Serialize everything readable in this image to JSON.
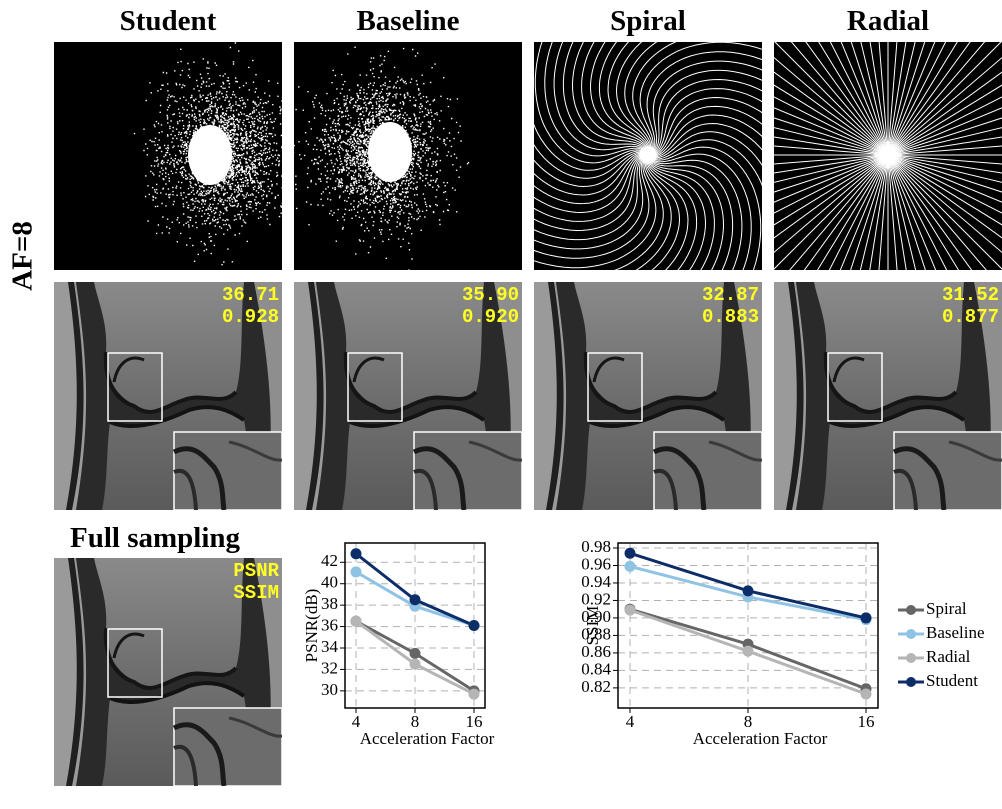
{
  "columns": [
    "Student",
    "Baseline",
    "Spiral",
    "Radial"
  ],
  "row_label": "AF=8",
  "reconstructions": [
    {
      "psnr": "36.71",
      "ssim": "0.928"
    },
    {
      "psnr": "35.90",
      "ssim": "0.920"
    },
    {
      "psnr": "32.87",
      "ssim": "0.883"
    },
    {
      "psnr": "31.52",
      "ssim": "0.877"
    }
  ],
  "full_sampling": {
    "title": "Full sampling",
    "psnr": "PSNR",
    "ssim": "SSIM"
  },
  "chart_data": [
    {
      "type": "line",
      "categories": [
        "4",
        "8",
        "16"
      ],
      "xlabel": "Acceleration Factor",
      "ylabel": "PSNR(dB)",
      "ylim": [
        28.4,
        43.8
      ],
      "yticks": [
        30,
        32,
        34,
        36,
        38,
        40,
        42
      ],
      "grid": true,
      "series": [
        {
          "name": "Spiral",
          "color": "#666666",
          "values": [
            36.5,
            33.5,
            30.0
          ]
        },
        {
          "name": "Baseline",
          "color": "#8ec3e3",
          "values": [
            41.1,
            37.9,
            36.1
          ]
        },
        {
          "name": "Radial",
          "color": "#b5b5b5",
          "values": [
            36.5,
            32.5,
            29.7
          ]
        },
        {
          "name": "Student",
          "color": "#0d2d68",
          "values": [
            42.8,
            38.5,
            36.1
          ]
        }
      ]
    },
    {
      "type": "line",
      "categories": [
        "4",
        "8",
        "16"
      ],
      "xlabel": "Acceleration Factor",
      "ylabel": "SSIM",
      "ylim": [
        0.797,
        0.9857
      ],
      "yticks": [
        0.82,
        0.84,
        0.86,
        0.88,
        {
          "value": 0.9,
          "label": "0.90"
        },
        0.92,
        0.94,
        0.96,
        0.98
      ],
      "grid": true,
      "legend": "right",
      "series": [
        {
          "name": "Spiral",
          "color": "#666666",
          "values": [
            0.91,
            0.87,
            0.819
          ]
        },
        {
          "name": "Baseline",
          "color": "#8ec3e3",
          "values": [
            0.959,
            0.924,
            0.898
          ]
        },
        {
          "name": "Radial",
          "color": "#b5b5b5",
          "values": [
            0.909,
            0.862,
            0.813
          ]
        },
        {
          "name": "Student",
          "color": "#0d2d68",
          "values": [
            0.974,
            0.931,
            0.9
          ]
        }
      ]
    }
  ]
}
